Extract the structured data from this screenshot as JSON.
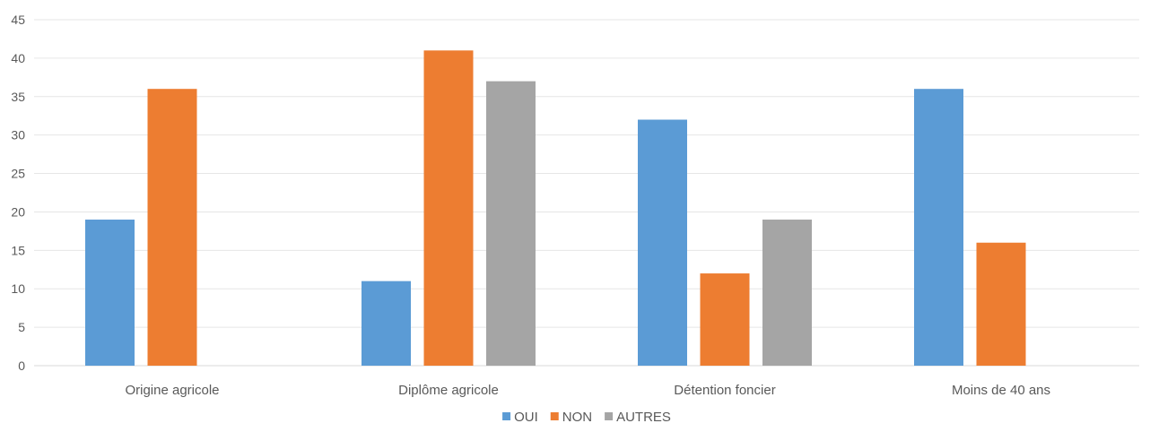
{
  "chart_data": {
    "type": "bar",
    "title": "",
    "xlabel": "",
    "ylabel": "",
    "categories": [
      "Origine agricole",
      "Diplôme agricole",
      "Détention foncier",
      "Moins de 40 ans"
    ],
    "series": [
      {
        "name": "OUI",
        "color": "#5B9BD5",
        "values": [
          19,
          11,
          32,
          36
        ]
      },
      {
        "name": "NON",
        "color": "#ED7D31",
        "values": [
          36,
          41,
          12,
          16
        ]
      },
      {
        "name": "AUTRES",
        "color": "#A5A5A5",
        "values": [
          null,
          37,
          19,
          null
        ]
      }
    ],
    "ylim": [
      0,
      45
    ],
    "yticks": [
      0,
      5,
      10,
      15,
      20,
      25,
      30,
      35,
      40,
      45
    ],
    "grid": true,
    "legend_position": "bottom"
  }
}
